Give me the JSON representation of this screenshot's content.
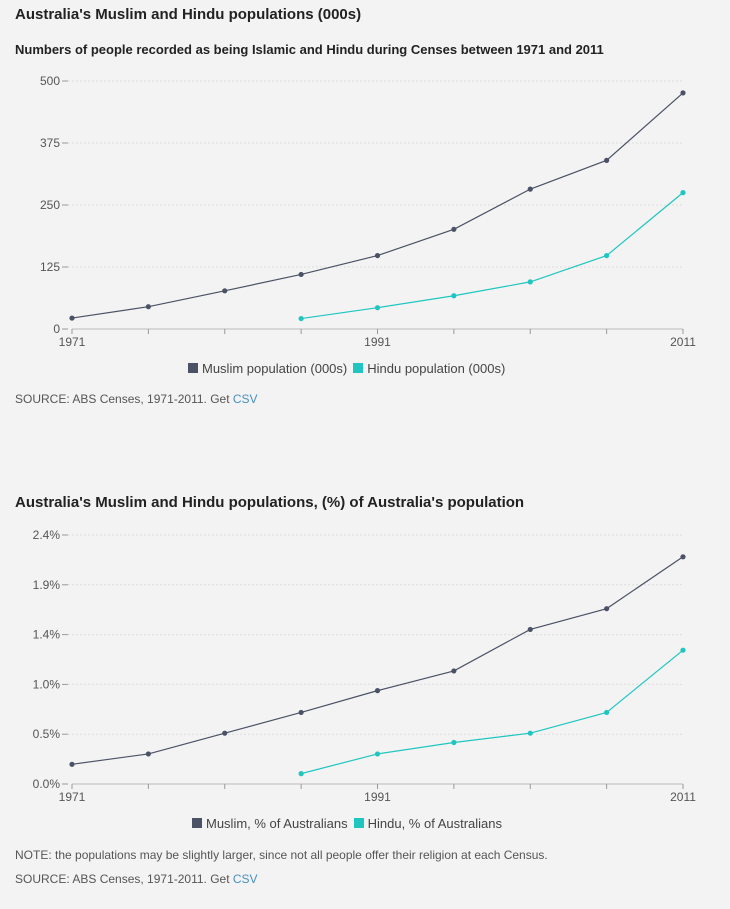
{
  "chart_data": [
    {
      "type": "line",
      "title": "Australia's Muslim and Hindu populations (000s)",
      "subtitle": "Numbers of people recorded as being Islamic and Hindu during Censes between 1971 and 2011",
      "x": [
        1971,
        1976,
        1981,
        1986,
        1991,
        1996,
        2001,
        2006,
        2011
      ],
      "xticks": [
        "1971",
        "1991",
        "2011"
      ],
      "yticks": [
        "0",
        "125",
        "250",
        "375",
        "500"
      ],
      "ylim": [
        0,
        500
      ],
      "grid": true,
      "legend": "bottom",
      "series": [
        {
          "name": "Muslim population (000s)",
          "color": "#4b5266",
          "values": [
            22,
            45,
            77,
            110,
            148,
            201,
            282,
            340,
            476
          ]
        },
        {
          "name": "Hindu population (000s)",
          "color": "#1fc6c0",
          "values": [
            null,
            null,
            null,
            21,
            43,
            67,
            95,
            148,
            275
          ]
        }
      ],
      "source": "SOURCE: ABS Censes, 1971-2011. Get ",
      "link": "CSV"
    },
    {
      "type": "line",
      "title": "Australia's Muslim and Hindu populations, (%) of Australia's population",
      "x": [
        1971,
        1976,
        1981,
        1986,
        1991,
        1996,
        2001,
        2006,
        2011
      ],
      "xticks": [
        "1971",
        "1991",
        "2011"
      ],
      "yticks": [
        "0.0%",
        "0.5%",
        "1.0%",
        "1.4%",
        "1.9%",
        "2.4%"
      ],
      "ylim": [
        0,
        2.4
      ],
      "grid": true,
      "legend": "bottom",
      "series": [
        {
          "name": "Muslim, % of Australians",
          "color": "#4b5266",
          "values": [
            0.19,
            0.29,
            0.49,
            0.69,
            0.9,
            1.09,
            1.49,
            1.69,
            2.19
          ]
        },
        {
          "name": "Hindu, % of Australians",
          "color": "#1fc6c0",
          "values": [
            null,
            null,
            null,
            0.1,
            0.29,
            0.4,
            0.49,
            0.69,
            1.29
          ]
        }
      ],
      "note": "NOTE: the populations may be slightly larger, since not all people offer their religion at each Census.",
      "source": "SOURCE: ABS Censes, 1971-2011. Get ",
      "link": "CSV"
    }
  ]
}
